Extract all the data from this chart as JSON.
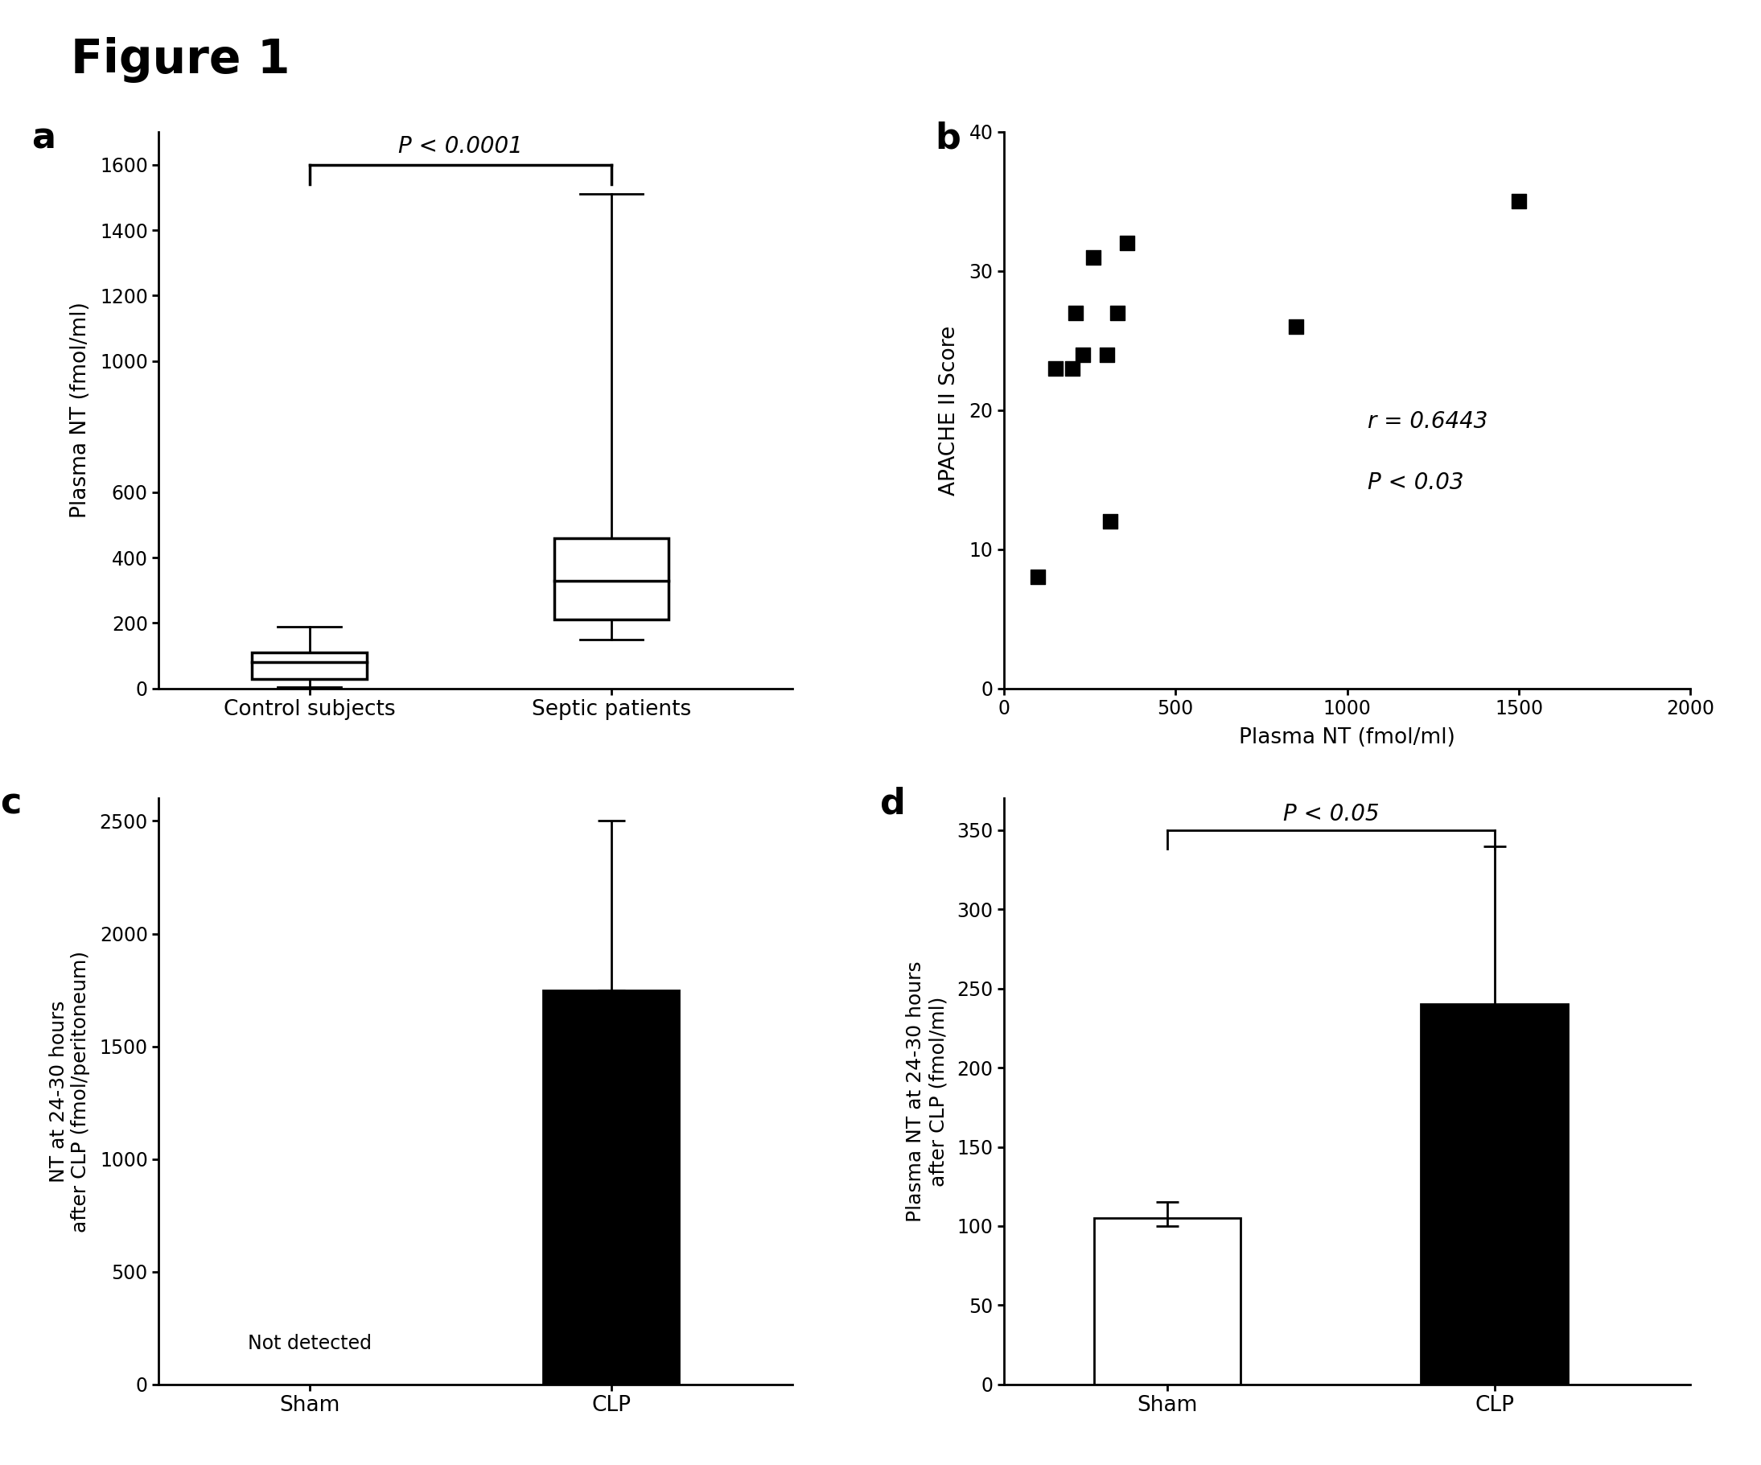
{
  "figure_title": "Figure 1",
  "panel_a": {
    "label": "a",
    "ylabel": "Plasma NT (fmol/ml)",
    "groups": [
      "Control subjects",
      "Septic patients"
    ],
    "box_control": {
      "median": 80,
      "q1": 30,
      "q3": 110,
      "whisker_low": 5,
      "whisker_high": 190,
      "color": "white"
    },
    "box_septic": {
      "median": 330,
      "q1": 210,
      "q3": 460,
      "whisker_low": 150,
      "whisker_high": 1510,
      "color": "white"
    },
    "ylim": [
      0,
      1700
    ],
    "yticks": [
      0,
      200,
      400,
      600,
      1000,
      1200,
      1400,
      1600
    ],
    "significance_text": "P < 0.0001",
    "significance_y": 1620,
    "bracket_y": 1600
  },
  "panel_b": {
    "label": "b",
    "xlabel": "Plasma NT (fmol/ml)",
    "ylabel": "APACHE II Score",
    "scatter_x": [
      100,
      150,
      200,
      210,
      230,
      260,
      300,
      310,
      330,
      360,
      850,
      1500
    ],
    "scatter_y": [
      8,
      23,
      23,
      27,
      24,
      31,
      24,
      12,
      27,
      32,
      26,
      35
    ],
    "xlim": [
      0,
      2000
    ],
    "ylim": [
      0,
      40
    ],
    "xticks": [
      0,
      500,
      1000,
      1500,
      2000
    ],
    "yticks": [
      0,
      10,
      20,
      30,
      40
    ],
    "annotation_r": "r = 0.6443",
    "annotation_p": "P < 0.03"
  },
  "panel_c": {
    "label": "c",
    "ylabel": "NT at 24-30 hours\nafter CLP (fmol/peritoneum)",
    "groups": [
      "Sham",
      "CLP"
    ],
    "bar_clp_value": 1750,
    "bar_clp_error_high": 750,
    "ylim": [
      0,
      2600
    ],
    "yticks": [
      0,
      500,
      1000,
      1500,
      2000,
      2500
    ],
    "not_detected_text": "Not detected"
  },
  "panel_d": {
    "label": "d",
    "ylabel": "Plasma NT at 24-30 hours\nafter CLP (fmol/ml)",
    "groups": [
      "Sham",
      "CLP"
    ],
    "bar_sham_value": 105,
    "bar_sham_err_high": 10,
    "bar_sham_err_low": 5,
    "bar_clp_value": 240,
    "bar_clp_err_high": 100,
    "bar_clp_err_low": 5,
    "ylim": [
      0,
      370
    ],
    "yticks": [
      0,
      50,
      100,
      150,
      200,
      250,
      300,
      350
    ],
    "significance_text": "P < 0.05",
    "bracket_y": 350
  },
  "background_color": "white",
  "text_color": "black"
}
